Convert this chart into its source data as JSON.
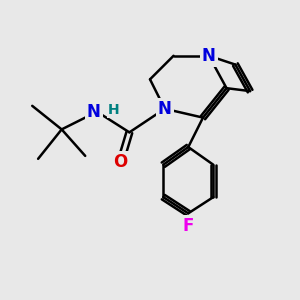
{
  "bg_color": "#e8e8e8",
  "bond_color": "#000000",
  "bond_width": 1.8,
  "atom_colors": {
    "N": "#0000dd",
    "O": "#dd0000",
    "F": "#ee00ee",
    "H": "#008080",
    "C": "#000000"
  }
}
